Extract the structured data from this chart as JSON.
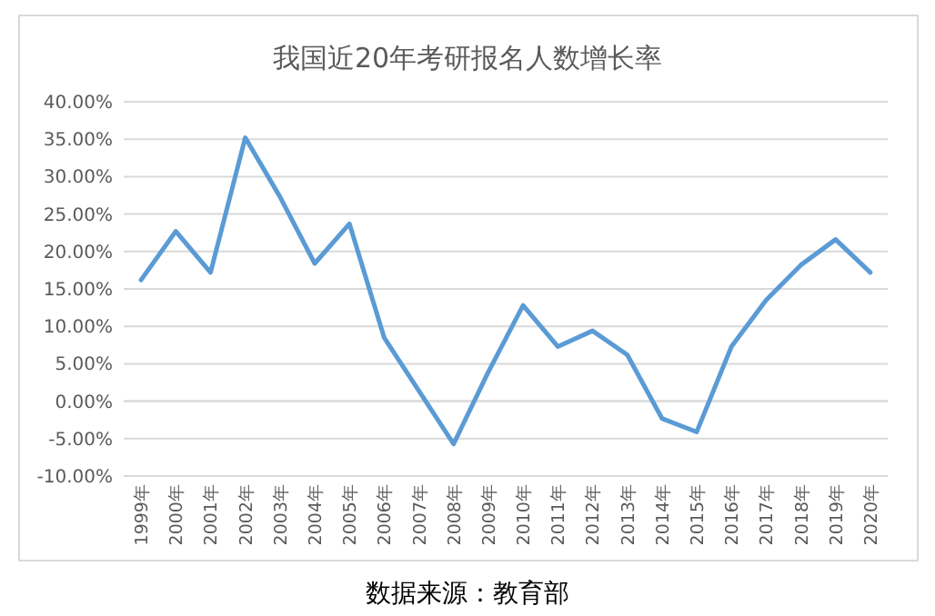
{
  "chart_data": {
    "type": "line",
    "title": "我国近20年考研报名人数增长率",
    "categories": [
      "1999年",
      "2000年",
      "2001年",
      "2002年",
      "2003年",
      "2004年",
      "2005年",
      "2006年",
      "2007年",
      "2008年",
      "2009年",
      "2010年",
      "2011年",
      "2012年",
      "2013年",
      "2014年",
      "2015年",
      "2016年",
      "2017年",
      "2018年",
      "2019年",
      "2020年"
    ],
    "values": [
      16.2,
      22.7,
      17.2,
      35.2,
      27.3,
      18.4,
      23.7,
      8.5,
      1.4,
      -5.7,
      3.9,
      12.8,
      7.3,
      9.4,
      6.2,
      -2.3,
      -4.1,
      7.3,
      13.5,
      18.2,
      21.6,
      17.2
    ],
    "color": "#5b9bd5",
    "ylim": [
      -10,
      40
    ],
    "yticks": [
      {
        "value": -10,
        "label": "-10.00%"
      },
      {
        "value": -5,
        "label": "-5.00%"
      },
      {
        "value": 0,
        "label": "0.00%"
      },
      {
        "value": 5,
        "label": "5.00%"
      },
      {
        "value": 10,
        "label": "10.00%"
      },
      {
        "value": 15,
        "label": "15.00%"
      },
      {
        "value": 20,
        "label": "20.00%"
      },
      {
        "value": 25,
        "label": "25.00%"
      },
      {
        "value": 30,
        "label": "30.00%"
      },
      {
        "value": 35,
        "label": "35.00%"
      },
      {
        "value": 40,
        "label": "40.00%"
      }
    ],
    "grid": "y",
    "annotations": [
      "数据来源：教育部"
    ]
  }
}
